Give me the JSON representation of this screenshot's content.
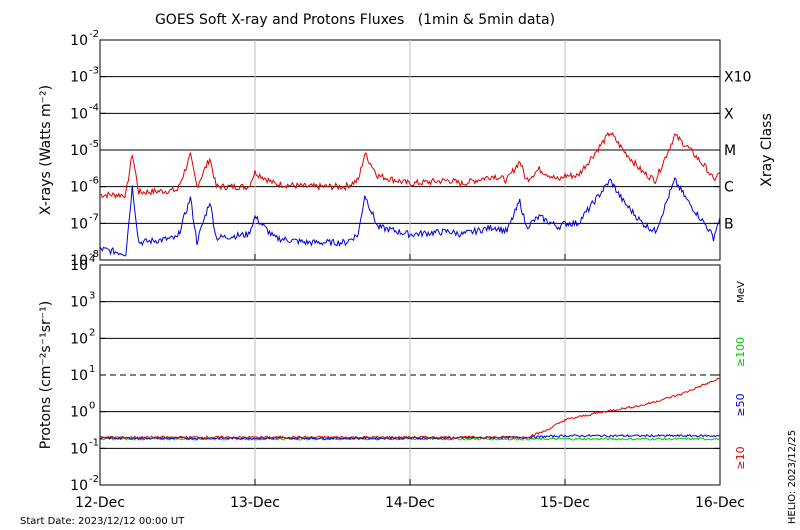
{
  "chart_data": [
    {
      "type": "line",
      "title": "GOES Soft X-ray and Protons Fluxes   (1min & 5min data)",
      "ylabel": "X-rays (Watts m⁻²)",
      "y_scale": "log",
      "ylim": [
        1e-08,
        0.01
      ],
      "ytick_bases": [
        "10",
        "10",
        "10",
        "10",
        "10",
        "10",
        "10"
      ],
      "ytick_exps": [
        "-8",
        "-7",
        "-6",
        "-5",
        "-4",
        "-3",
        "-2"
      ],
      "x_ticks": [
        "12-Dec",
        "13-Dec",
        "14-Dec",
        "15-Dec",
        "16-Dec"
      ],
      "xlim": [
        "2023-12-12",
        "2023-12-16"
      ],
      "grid": true,
      "right_axis_title": "Xray Class",
      "right_labels": [
        "B",
        "C",
        "M",
        "X",
        "X10"
      ],
      "series": [
        {
          "color": "#e00000",
          "points": [
            [
              "2023-12-12 00:00",
              6e-07
            ],
            [
              "2023-12-12 04:00",
              6e-07
            ],
            [
              "2023-12-12 05:00",
              8e-06
            ],
            [
              "2023-12-12 06:00",
              7e-07
            ],
            [
              "2023-12-12 12:00",
              8e-07
            ],
            [
              "2023-12-12 14:00",
              7e-06
            ],
            [
              "2023-12-12 15:00",
              1e-06
            ],
            [
              "2023-12-12 17:00",
              6e-06
            ],
            [
              "2023-12-12 18:00",
              1e-06
            ],
            [
              "2023-12-12 23:00",
              1e-06
            ],
            [
              "2023-12-13 00:00",
              2.5e-06
            ],
            [
              "2023-12-13 03:00",
              1.2e-06
            ],
            [
              "2023-12-13 08:00",
              1e-06
            ],
            [
              "2023-12-13 14:00",
              1e-06
            ],
            [
              "2023-12-13 16:00",
              1.5e-06
            ],
            [
              "2023-12-13 17:00",
              8e-06
            ],
            [
              "2023-12-13 19:00",
              2e-06
            ],
            [
              "2023-12-14 00:00",
              1.2e-06
            ],
            [
              "2023-12-14 06:00",
              1.5e-06
            ],
            [
              "2023-12-14 08:00",
              1.2e-06
            ],
            [
              "2023-12-14 13:00",
              2e-06
            ],
            [
              "2023-12-14 15:00",
              1.5e-06
            ],
            [
              "2023-12-14 17:00",
              5e-06
            ],
            [
              "2023-12-14 18:00",
              1.5e-06
            ],
            [
              "2023-12-14 20:00",
              3e-06
            ],
            [
              "2023-12-14 23:00",
              1.5e-06
            ],
            [
              "2023-12-15 00:00",
              2e-06
            ],
            [
              "2023-12-15 02:00",
              2e-06
            ],
            [
              "2023-12-15 07:00",
              3e-05
            ],
            [
              "2023-12-15 09:00",
              1e-05
            ],
            [
              "2023-12-15 12:00",
              2.5e-06
            ],
            [
              "2023-12-15 14:00",
              1.5e-06
            ],
            [
              "2023-12-15 17:00",
              2.5e-05
            ],
            [
              "2023-12-15 19:00",
              1.2e-05
            ],
            [
              "2023-12-15 22:00",
              3e-06
            ],
            [
              "2023-12-15 23:00",
              1.5e-06
            ],
            [
              "2023-12-16 00:00",
              2.5e-06
            ]
          ]
        },
        {
          "color": "#0000dd",
          "points": [
            [
              "2023-12-12 00:00",
              2e-08
            ],
            [
              "2023-12-12 04:00",
              1.5e-08
            ],
            [
              "2023-12-12 05:00",
              1e-06
            ],
            [
              "2023-12-12 06:00",
              3e-08
            ],
            [
              "2023-12-12 12:00",
              4e-08
            ],
            [
              "2023-12-12 14:00",
              5e-07
            ],
            [
              "2023-12-12 15:00",
              3e-08
            ],
            [
              "2023-12-12 17:00",
              4e-07
            ],
            [
              "2023-12-12 18:00",
              4e-08
            ],
            [
              "2023-12-12 23:00",
              5e-08
            ],
            [
              "2023-12-13 00:00",
              1.5e-07
            ],
            [
              "2023-12-13 03:00",
              4e-08
            ],
            [
              "2023-12-13 08:00",
              3e-08
            ],
            [
              "2023-12-13 14:00",
              3e-08
            ],
            [
              "2023-12-13 16:00",
              5e-08
            ],
            [
              "2023-12-13 17:00",
              6e-07
            ],
            [
              "2023-12-13 19:00",
              8e-08
            ],
            [
              "2023-12-14 00:00",
              5e-08
            ],
            [
              "2023-12-14 06:00",
              6e-08
            ],
            [
              "2023-12-14 08:00",
              5e-08
            ],
            [
              "2023-12-14 13:00",
              8e-08
            ],
            [
              "2023-12-14 15:00",
              6e-08
            ],
            [
              "2023-12-14 17:00",
              4e-07
            ],
            [
              "2023-12-14 18:00",
              8e-08
            ],
            [
              "2023-12-14 20:00",
              1.5e-07
            ],
            [
              "2023-12-14 23:00",
              8e-08
            ],
            [
              "2023-12-15 00:00",
              1e-07
            ],
            [
              "2023-12-15 02:00",
              1e-07
            ],
            [
              "2023-12-15 07:00",
              1.5e-06
            ],
            [
              "2023-12-15 09:00",
              4e-07
            ],
            [
              "2023-12-15 12:00",
              1e-07
            ],
            [
              "2023-12-15 14:00",
              6e-08
            ],
            [
              "2023-12-15 17:00",
              1.5e-06
            ],
            [
              "2023-12-15 19:00",
              4e-07
            ],
            [
              "2023-12-15 22:00",
              8e-08
            ],
            [
              "2023-12-15 23:00",
              4e-08
            ],
            [
              "2023-12-16 00:00",
              1.5e-07
            ]
          ]
        }
      ]
    },
    {
      "type": "line",
      "ylabel": "Protons (cm⁻²s⁻¹sr⁻¹)",
      "y_scale": "log",
      "ylim": [
        0.01,
        10000
      ],
      "ytick_bases": [
        "10",
        "10",
        "10",
        "10",
        "10",
        "10",
        "10"
      ],
      "ytick_exps": [
        "-2",
        "-1",
        "0",
        "1",
        "2",
        "3",
        "4"
      ],
      "x_ticks": [
        "12-Dec",
        "13-Dec",
        "14-Dec",
        "15-Dec",
        "16-Dec"
      ],
      "xlim": [
        "2023-12-12",
        "2023-12-16"
      ],
      "grid": true,
      "threshold": 10,
      "right_unit": "MeV",
      "series": [
        {
          "name": "≥100",
          "color": "#00cc00",
          "points": [
            [
              "2023-12-12 00:00",
              0.18
            ],
            [
              "2023-12-13 00:00",
              0.18
            ],
            [
              "2023-12-14 00:00",
              0.18
            ],
            [
              "2023-12-15 00:00",
              0.18
            ],
            [
              "2023-12-16 00:00",
              0.18
            ]
          ]
        },
        {
          "name": "≥50",
          "color": "#0000dd",
          "points": [
            [
              "2023-12-12 00:00",
              0.19
            ],
            [
              "2023-12-13 00:00",
              0.19
            ],
            [
              "2023-12-14 00:00",
              0.19
            ],
            [
              "2023-12-14 18:00",
              0.2
            ],
            [
              "2023-12-15 00:00",
              0.22
            ],
            [
              "2023-12-16 00:00",
              0.22
            ]
          ]
        },
        {
          "name": "≥10",
          "color": "#e00000",
          "points": [
            [
              "2023-12-12 00:00",
              0.2
            ],
            [
              "2023-12-13 00:00",
              0.2
            ],
            [
              "2023-12-14 00:00",
              0.2
            ],
            [
              "2023-12-14 18:00",
              0.2
            ],
            [
              "2023-12-14 21:00",
              0.3
            ],
            [
              "2023-12-15 00:00",
              0.6
            ],
            [
              "2023-12-15 06:00",
              1
            ],
            [
              "2023-12-15 12:00",
              1.5
            ],
            [
              "2023-12-15 18:00",
              3
            ],
            [
              "2023-12-15 21:00",
              5
            ],
            [
              "2023-12-16 00:00",
              8
            ]
          ]
        }
      ]
    }
  ],
  "footer": {
    "start_date": "Start Date: 2023/12/12 00:00 UT",
    "side_label": "HELIO: 2023/12/25"
  }
}
